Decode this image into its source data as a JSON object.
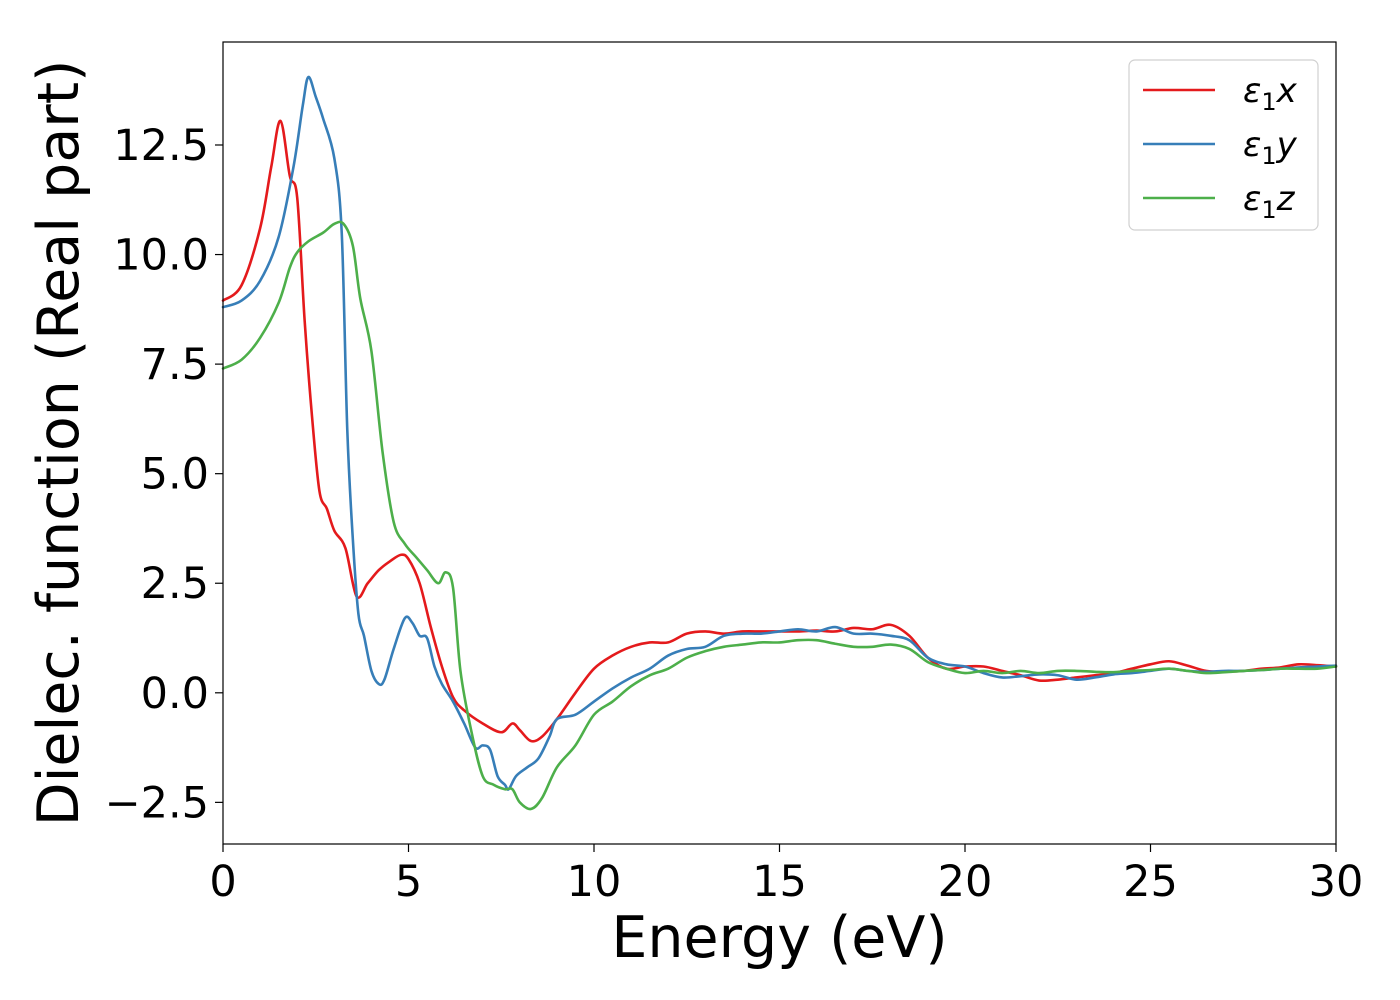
{
  "chart_data": {
    "type": "line",
    "title": "",
    "xlabel": "Energy (eV)",
    "ylabel": "Dielec. function (Real part)",
    "xlim": [
      0,
      30
    ],
    "ylim": [
      -3.45,
      14.85
    ],
    "grid": false,
    "legend_position": "top-right",
    "x_ticks": [
      0,
      5,
      10,
      15,
      20,
      25,
      30
    ],
    "x_tick_labels": [
      "0",
      "5",
      "10",
      "15",
      "20",
      "25",
      "30"
    ],
    "y_ticks": [
      -2.5,
      0.0,
      2.5,
      5.0,
      7.5,
      10.0,
      12.5
    ],
    "y_tick_labels": [
      "−2.5",
      "0.0",
      "2.5",
      "5.0",
      "7.5",
      "10.0",
      "12.5"
    ],
    "series": [
      {
        "name": "ε1x",
        "legend": {
          "symbol": "ε",
          "sub": "1",
          "var": "x"
        },
        "color": "#e41a1c",
        "x": [
          0,
          0.5,
          1.0,
          1.3,
          1.55,
          1.8,
          2.0,
          2.2,
          2.4,
          2.6,
          2.8,
          3.0,
          3.3,
          3.6,
          3.9,
          4.2,
          4.5,
          4.8,
          5.0,
          5.3,
          5.6,
          5.9,
          6.2,
          6.5,
          7.0,
          7.5,
          7.8,
          8.0,
          8.3,
          8.6,
          9.0,
          9.5,
          10.0,
          10.5,
          11.0,
          11.5,
          12.0,
          12.5,
          13.0,
          13.5,
          14.0,
          14.5,
          15.0,
          15.5,
          16.0,
          16.5,
          17.0,
          17.5,
          18.0,
          18.5,
          19.0,
          19.5,
          20.0,
          20.5,
          21.0,
          21.5,
          22.0,
          22.5,
          23.0,
          23.5,
          24.0,
          24.5,
          25.0,
          25.5,
          26.0,
          26.5,
          27.0,
          27.5,
          28.0,
          28.5,
          29.0,
          29.5,
          30.0
        ],
        "values": [
          8.95,
          9.3,
          10.6,
          12.0,
          13.05,
          11.8,
          11.3,
          8.5,
          6.3,
          4.6,
          4.2,
          3.7,
          3.3,
          2.2,
          2.5,
          2.8,
          3.0,
          3.15,
          3.05,
          2.5,
          1.5,
          0.6,
          -0.1,
          -0.4,
          -0.7,
          -0.9,
          -0.7,
          -0.85,
          -1.1,
          -1.0,
          -0.6,
          0.0,
          0.55,
          0.85,
          1.05,
          1.15,
          1.15,
          1.35,
          1.4,
          1.35,
          1.4,
          1.4,
          1.4,
          1.4,
          1.42,
          1.4,
          1.48,
          1.45,
          1.55,
          1.3,
          0.8,
          0.55,
          0.6,
          0.6,
          0.5,
          0.4,
          0.28,
          0.3,
          0.35,
          0.4,
          0.45,
          0.55,
          0.65,
          0.72,
          0.62,
          0.5,
          0.48,
          0.5,
          0.55,
          0.58,
          0.65,
          0.63,
          0.6
        ]
      },
      {
        "name": "ε1y",
        "legend": {
          "symbol": "ε",
          "sub": "1",
          "var": "y"
        },
        "color": "#377eb8",
        "x": [
          0,
          0.5,
          1.0,
          1.5,
          1.9,
          2.15,
          2.3,
          2.5,
          2.7,
          3.0,
          3.2,
          3.35,
          3.5,
          3.65,
          3.8,
          4.0,
          4.2,
          4.35,
          4.6,
          4.9,
          5.1,
          5.3,
          5.5,
          5.7,
          5.9,
          6.2,
          6.5,
          6.8,
          7.0,
          7.2,
          7.4,
          7.6,
          7.7,
          7.9,
          8.2,
          8.5,
          8.8,
          9.0,
          9.5,
          10.0,
          10.5,
          11.0,
          11.5,
          12.0,
          12.5,
          13.0,
          13.5,
          14.0,
          14.5,
          15.0,
          15.5,
          16.0,
          16.5,
          17.0,
          17.5,
          18.0,
          18.5,
          19.0,
          19.5,
          20.0,
          20.5,
          21.0,
          21.5,
          22.0,
          22.5,
          23.0,
          23.5,
          24.0,
          24.5,
          25.0,
          25.5,
          26.0,
          26.5,
          27.0,
          27.5,
          28.0,
          28.5,
          29.0,
          29.5,
          30.0
        ],
        "values": [
          8.8,
          8.95,
          9.4,
          10.4,
          12.0,
          13.4,
          14.05,
          13.6,
          13.1,
          12.2,
          10.5,
          6.0,
          3.5,
          1.8,
          1.3,
          0.5,
          0.2,
          0.3,
          1.0,
          1.7,
          1.6,
          1.3,
          1.25,
          0.6,
          0.2,
          -0.2,
          -0.7,
          -1.25,
          -1.2,
          -1.3,
          -1.9,
          -2.1,
          -2.2,
          -1.9,
          -1.7,
          -1.5,
          -1.0,
          -0.6,
          -0.5,
          -0.2,
          0.1,
          0.35,
          0.55,
          0.85,
          1.0,
          1.05,
          1.3,
          1.35,
          1.35,
          1.4,
          1.45,
          1.4,
          1.5,
          1.35,
          1.35,
          1.3,
          1.2,
          0.8,
          0.65,
          0.6,
          0.45,
          0.35,
          0.38,
          0.42,
          0.4,
          0.3,
          0.35,
          0.42,
          0.45,
          0.5,
          0.55,
          0.5,
          0.48,
          0.5,
          0.5,
          0.52,
          0.55,
          0.58,
          0.6,
          0.62
        ]
      },
      {
        "name": "ε1z",
        "legend": {
          "symbol": "ε",
          "sub": "1",
          "var": "z"
        },
        "color": "#4daf4a",
        "x": [
          0,
          0.5,
          1.0,
          1.5,
          1.8,
          2.0,
          2.3,
          2.7,
          3.0,
          3.25,
          3.5,
          3.7,
          4.0,
          4.3,
          4.6,
          4.9,
          5.2,
          5.5,
          5.8,
          6.0,
          6.2,
          6.4,
          6.7,
          7.0,
          7.3,
          7.6,
          7.8,
          8.0,
          8.3,
          8.6,
          9.0,
          9.5,
          10.0,
          10.5,
          11.0,
          11.5,
          12.0,
          12.5,
          13.0,
          13.5,
          14.0,
          14.5,
          15.0,
          15.5,
          16.0,
          16.5,
          17.0,
          17.5,
          18.0,
          18.5,
          19.0,
          19.5,
          20.0,
          20.5,
          21.0,
          21.5,
          22.0,
          22.5,
          23.0,
          23.5,
          24.0,
          24.5,
          25.0,
          25.5,
          26.0,
          26.5,
          27.0,
          27.5,
          28.0,
          28.5,
          29.0,
          29.5,
          30.0
        ],
        "values": [
          7.4,
          7.6,
          8.1,
          8.9,
          9.7,
          10.05,
          10.3,
          10.5,
          10.7,
          10.7,
          10.2,
          9.0,
          7.8,
          5.5,
          3.9,
          3.4,
          3.1,
          2.8,
          2.5,
          2.75,
          2.4,
          0.5,
          -0.9,
          -1.9,
          -2.1,
          -2.2,
          -2.2,
          -2.5,
          -2.65,
          -2.4,
          -1.7,
          -1.2,
          -0.5,
          -0.2,
          0.15,
          0.4,
          0.55,
          0.8,
          0.95,
          1.05,
          1.1,
          1.15,
          1.15,
          1.2,
          1.2,
          1.12,
          1.05,
          1.05,
          1.1,
          1.0,
          0.7,
          0.55,
          0.45,
          0.5,
          0.45,
          0.5,
          0.45,
          0.5,
          0.5,
          0.48,
          0.47,
          0.5,
          0.52,
          0.55,
          0.5,
          0.45,
          0.47,
          0.5,
          0.52,
          0.55,
          0.55,
          0.55,
          0.6
        ]
      }
    ]
  }
}
